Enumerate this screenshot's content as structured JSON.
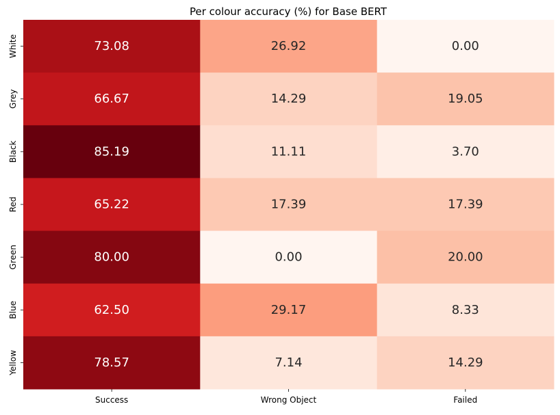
{
  "chart_data": {
    "type": "heatmap",
    "title": "Per colour accuracy (%) for Base BERT",
    "xlabel": "",
    "ylabel": "",
    "columns": [
      "Success",
      "Wrong Object",
      "Failed"
    ],
    "rows": [
      "White",
      "Grey",
      "Black",
      "Red",
      "Green",
      "Blue",
      "Yellow"
    ],
    "values": [
      [
        73.08,
        26.92,
        0.0
      ],
      [
        66.67,
        14.29,
        19.05
      ],
      [
        85.19,
        11.11,
        3.7
      ],
      [
        65.22,
        17.39,
        17.39
      ],
      [
        80.0,
        0.0,
        20.0
      ],
      [
        62.5,
        29.17,
        8.33
      ],
      [
        78.57,
        7.14,
        14.29
      ]
    ],
    "value_labels": [
      [
        "73.08",
        "26.92",
        "0.00"
      ],
      [
        "66.67",
        "14.29",
        "19.05"
      ],
      [
        "85.19",
        "11.11",
        "3.70"
      ],
      [
        "65.22",
        "17.39",
        "17.39"
      ],
      [
        "80.00",
        "0.00",
        "20.00"
      ],
      [
        "62.50",
        "29.17",
        "8.33"
      ],
      [
        "78.57",
        "7.14",
        "14.29"
      ]
    ],
    "colormap": "Reds",
    "vmin": 0,
    "vmax": 85.19,
    "colorbar": false,
    "grid": false
  }
}
